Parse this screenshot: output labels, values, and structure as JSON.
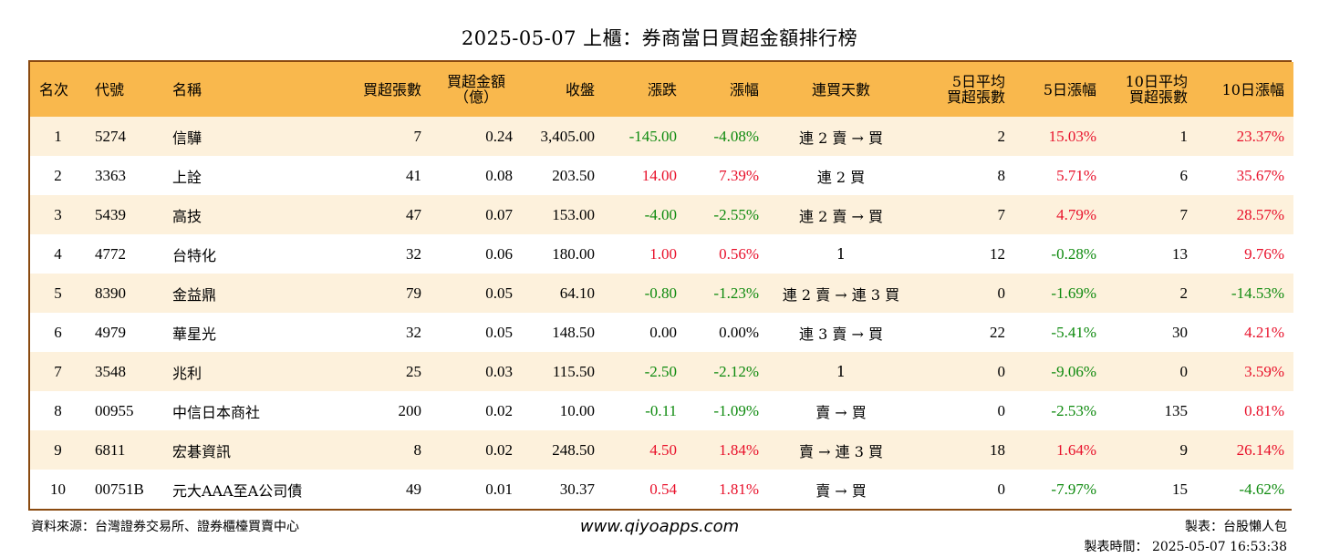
{
  "title": "2025-05-07 上櫃：券商當日買超金額排行榜",
  "columns": [
    "名次",
    "代號",
    "名稱",
    "買超張數",
    "買超金額\n（億）",
    "收盤",
    "漲跌",
    "漲幅",
    "連買天數",
    "5日平均\n買超張數",
    "5日漲幅",
    "10日平均\n買超張數",
    "10日漲幅"
  ],
  "rows": [
    [
      "1",
      "5274",
      "信驊",
      "7",
      "0.24",
      "3,405.00",
      "-145.00",
      "-4.08%",
      "連 2 賣 → 買",
      "2",
      "15.03%",
      "1",
      "23.37%"
    ],
    [
      "2",
      "3363",
      "上詮",
      "41",
      "0.08",
      "203.50",
      "14.00",
      "7.39%",
      "連 2 買",
      "8",
      "5.71%",
      "6",
      "35.67%"
    ],
    [
      "3",
      "5439",
      "高技",
      "47",
      "0.07",
      "153.00",
      "-4.00",
      "-2.55%",
      "連 2 賣 → 買",
      "7",
      "4.79%",
      "7",
      "28.57%"
    ],
    [
      "4",
      "4772",
      "台特化",
      "32",
      "0.06",
      "180.00",
      "1.00",
      "0.56%",
      "1",
      "12",
      "-0.28%",
      "13",
      "9.76%"
    ],
    [
      "5",
      "8390",
      "金益鼎",
      "79",
      "0.05",
      "64.10",
      "-0.80",
      "-1.23%",
      "連 2 賣 → 連 3 買",
      "0",
      "-1.69%",
      "2",
      "-14.53%"
    ],
    [
      "6",
      "4979",
      "華星光",
      "32",
      "0.05",
      "148.50",
      "0.00",
      "0.00%",
      "連 3 賣 → 買",
      "22",
      "-5.41%",
      "30",
      "4.21%"
    ],
    [
      "7",
      "3548",
      "兆利",
      "25",
      "0.03",
      "115.50",
      "-2.50",
      "-2.12%",
      "1",
      "0",
      "-9.06%",
      "0",
      "3.59%"
    ],
    [
      "8",
      "00955",
      "中信日本商社",
      "200",
      "0.02",
      "10.00",
      "-0.11",
      "-1.09%",
      "賣 → 買",
      "0",
      "-2.53%",
      "135",
      "0.81%"
    ],
    [
      "9",
      "6811",
      "宏碁資訊",
      "8",
      "0.02",
      "248.50",
      "4.50",
      "1.84%",
      "賣 → 連 3 買",
      "18",
      "1.64%",
      "9",
      "26.14%"
    ],
    [
      "10",
      "00751B",
      "元大AAA至A公司債",
      "49",
      "0.01",
      "30.37",
      "0.54",
      "1.81%",
      "賣 → 買",
      "0",
      "-7.97%",
      "15",
      "-4.62%"
    ]
  ],
  "colors": {
    "header_bg": "#f9b84d",
    "odd_row_bg": "#fdf1dc",
    "positive": "#e8102a",
    "negative": "#0e8a0e",
    "border": "#8a4a10"
  },
  "footer": {
    "source": "資料來源：台灣證券交易所、證券櫃檯買賣中心",
    "website": "www.qiyoapps.com",
    "maker": "製表：台股懶人包",
    "made_time": "製表時間： 2025-05-07 16:53:38"
  }
}
